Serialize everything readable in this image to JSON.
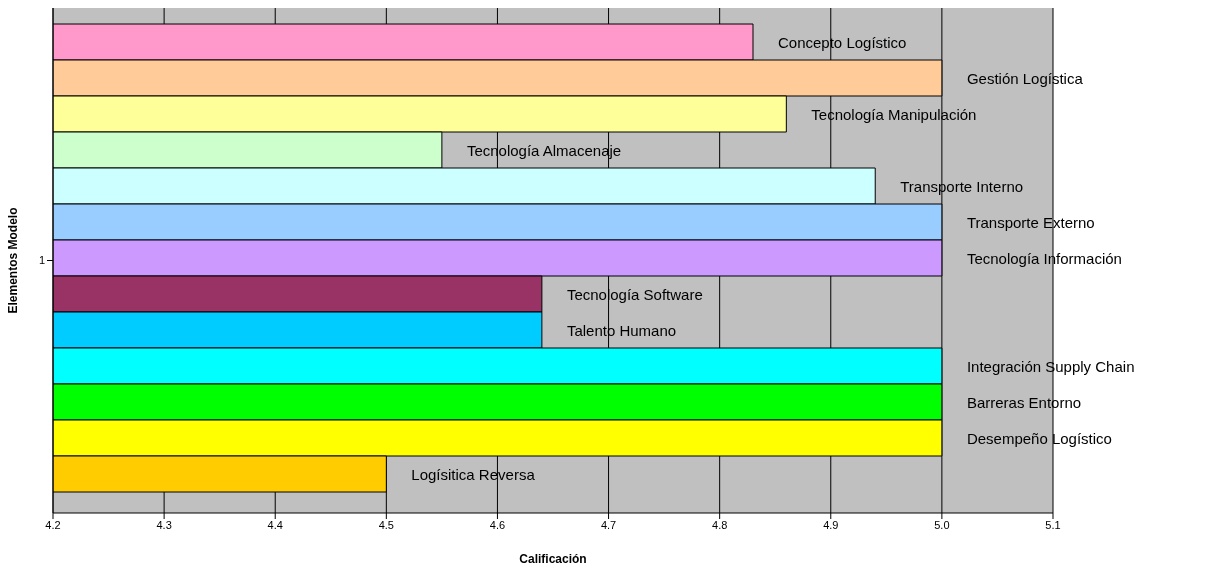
{
  "chart_data": {
    "type": "bar",
    "orientation": "horizontal",
    "xlabel": "Calificación",
    "ylabel": "Elementos Modelo",
    "categories": [
      "1"
    ],
    "series": [
      {
        "name": "Concepto Logístico",
        "color": "#ff99cc",
        "values": [
          4.83
        ]
      },
      {
        "name": "Gestión Logística",
        "color": "#ffcc99",
        "values": [
          5.0
        ]
      },
      {
        "name": "Tecnología Manipulación",
        "color": "#ffff99",
        "values": [
          4.86
        ]
      },
      {
        "name": "Tecnología Almacenaje",
        "color": "#ccffcc",
        "values": [
          4.55
        ]
      },
      {
        "name": "Transporte Interno",
        "color": "#ccffff",
        "values": [
          4.94
        ]
      },
      {
        "name": "Transporte Externo",
        "color": "#99ccff",
        "values": [
          5.0
        ]
      },
      {
        "name": "Tecnología Información",
        "color": "#cc99ff",
        "values": [
          5.0
        ]
      },
      {
        "name": "Tecnología Software",
        "color": "#993366",
        "values": [
          4.64
        ]
      },
      {
        "name": "Talento Humano",
        "color": "#00ccff",
        "values": [
          4.64
        ]
      },
      {
        "name": "Integración Supply Chain",
        "color": "#00ffff",
        "values": [
          5.0
        ]
      },
      {
        "name": "Barreras Entorno",
        "color": "#00ff00",
        "values": [
          5.0
        ]
      },
      {
        "name": "Desempeño Logístico",
        "color": "#ffff00",
        "values": [
          5.0
        ]
      },
      {
        "name": "Logísitica Reversa",
        "color": "#ffcc00",
        "values": [
          4.5
        ]
      }
    ],
    "xlim": [
      4.2,
      5.1
    ],
    "xticks": [
      {
        "value": 4.2,
        "label": "4.2"
      },
      {
        "value": 4.3,
        "label": "4.3"
      },
      {
        "value": 4.4,
        "label": "4.4"
      },
      {
        "value": 4.5,
        "label": "4.5"
      },
      {
        "value": 4.6,
        "label": "4.6"
      },
      {
        "value": 4.7,
        "label": "4.7"
      },
      {
        "value": 4.8,
        "label": "4.8"
      },
      {
        "value": 4.9,
        "label": "4.9"
      },
      {
        "value": 5.0,
        "label": "5.0"
      },
      {
        "value": 5.1,
        "label": "5.1"
      }
    ],
    "grid": "x",
    "legend": false
  }
}
